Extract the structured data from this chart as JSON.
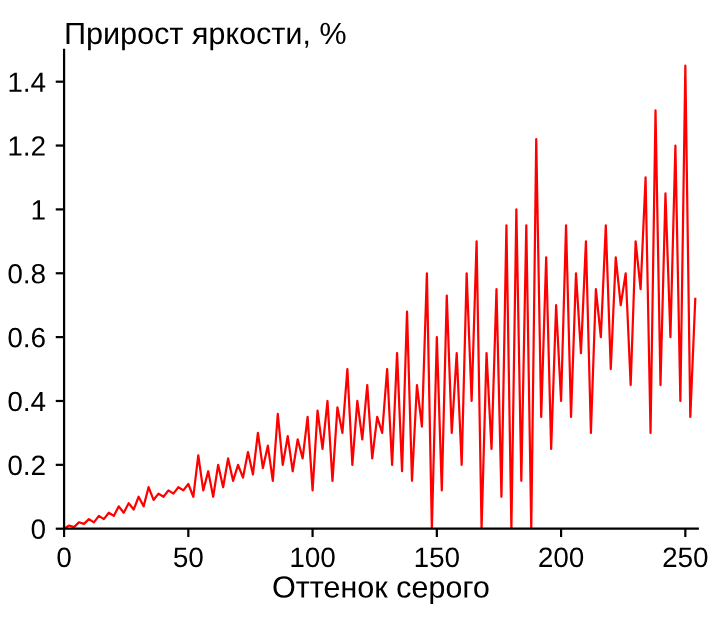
{
  "chart_data": {
    "type": "line",
    "title": "Прирост яркости, %",
    "xlabel": "Оттенок серого",
    "x": [
      0,
      2,
      4,
      6,
      8,
      10,
      12,
      14,
      16,
      18,
      20,
      22,
      24,
      26,
      28,
      30,
      32,
      34,
      36,
      38,
      40,
      42,
      44,
      46,
      48,
      50,
      52,
      54,
      56,
      58,
      60,
      62,
      64,
      66,
      68,
      70,
      72,
      74,
      76,
      78,
      80,
      82,
      84,
      86,
      88,
      90,
      92,
      94,
      96,
      98,
      100,
      102,
      104,
      106,
      108,
      110,
      112,
      114,
      116,
      118,
      120,
      122,
      124,
      126,
      128,
      130,
      132,
      134,
      136,
      138,
      140,
      142,
      144,
      146,
      148,
      150,
      152,
      154,
      156,
      158,
      160,
      162,
      164,
      166,
      168,
      170,
      172,
      174,
      176,
      178,
      180,
      182,
      184,
      186,
      188,
      190,
      192,
      194,
      196,
      198,
      200,
      202,
      204,
      206,
      208,
      210,
      212,
      214,
      216,
      218,
      220,
      222,
      224,
      226,
      228,
      230,
      232,
      234,
      236,
      238,
      240,
      242,
      244,
      246,
      248,
      250,
      252,
      254
    ],
    "series": [
      {
        "color": "#ff0000",
        "values": [
          0,
          0.01,
          0.005,
          0.02,
          0.015,
          0.03,
          0.02,
          0.04,
          0.03,
          0.05,
          0.04,
          0.07,
          0.05,
          0.08,
          0.06,
          0.1,
          0.07,
          0.13,
          0.09,
          0.11,
          0.1,
          0.12,
          0.11,
          0.13,
          0.12,
          0.14,
          0.1,
          0.23,
          0.12,
          0.18,
          0.1,
          0.2,
          0.13,
          0.22,
          0.15,
          0.2,
          0.16,
          0.24,
          0.17,
          0.3,
          0.19,
          0.26,
          0.15,
          0.36,
          0.2,
          0.29,
          0.18,
          0.28,
          0.22,
          0.35,
          0.12,
          0.37,
          0.25,
          0.4,
          0.15,
          0.38,
          0.3,
          0.5,
          0.2,
          0.4,
          0.28,
          0.45,
          0.22,
          0.35,
          0.3,
          0.5,
          0.2,
          0.55,
          0.18,
          0.68,
          0.15,
          0.45,
          0.32,
          0.8,
          0.0,
          0.6,
          0.12,
          0.73,
          0.3,
          0.55,
          0.2,
          0.8,
          0.4,
          0.9,
          0.0,
          0.55,
          0.25,
          0.75,
          0.1,
          0.95,
          0.0,
          1.0,
          0.15,
          0.95,
          0.0,
          1.22,
          0.35,
          0.85,
          0.25,
          0.7,
          0.4,
          0.95,
          0.35,
          0.8,
          0.55,
          0.9,
          0.3,
          0.75,
          0.6,
          0.95,
          0.5,
          0.85,
          0.7,
          0.8,
          0.45,
          0.9,
          0.75,
          1.1,
          0.3,
          1.31,
          0.45,
          1.05,
          0.6,
          1.2,
          0.4,
          1.45,
          0.35,
          0.72
        ]
      }
    ],
    "xlim": [
      0,
      255
    ],
    "xticks": [
      0,
      50,
      100,
      150,
      200,
      250
    ],
    "ylim": [
      0,
      1.5
    ],
    "yticks": [
      {
        "value": 0,
        "label": "0"
      },
      0.2,
      0.4,
      0.6,
      0.8,
      {
        "value": 1,
        "label": "1"
      },
      1.2,
      1.4
    ],
    "grid": false,
    "marker": "none",
    "line_style": "solid"
  }
}
